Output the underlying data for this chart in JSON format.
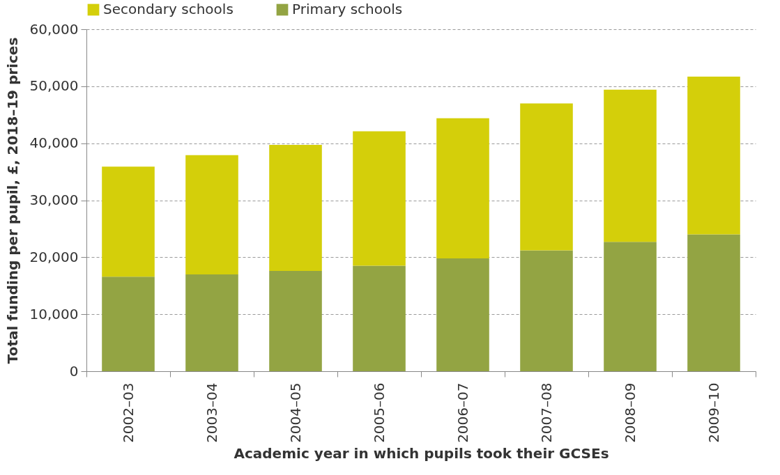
{
  "chart_data": {
    "type": "bar",
    "stacked": true,
    "xlabel": "Academic year in which pupils took their GCSEs",
    "ylabel": "Total funding per pupil, £, 2018–19 prices",
    "categories": [
      "2002–03",
      "2003–04",
      "2004–05",
      "2005–06",
      "2006–07",
      "2007–08",
      "2008–09",
      "2009–10"
    ],
    "series": [
      {
        "name": "Primary schools",
        "color": "#93a443",
        "values": [
          16600,
          17000,
          17600,
          18500,
          19800,
          21200,
          22700,
          24000
        ]
      },
      {
        "name": "Secondary schools",
        "color": "#d4cf0a",
        "values": [
          19300,
          20900,
          22100,
          23600,
          24600,
          25800,
          26700,
          27700
        ]
      }
    ],
    "ylim": [
      0,
      60000
    ],
    "yticks": [
      {
        "value": 0,
        "label": "0"
      },
      {
        "value": 10000,
        "label": "10,000"
      },
      {
        "value": 20000,
        "label": "20,000"
      },
      {
        "value": 30000,
        "label": "30,000"
      },
      {
        "value": 40000,
        "label": "40,000"
      },
      {
        "value": 50000,
        "label": "50,000"
      },
      {
        "value": 60000,
        "label": "60,000"
      }
    ],
    "grid": "y",
    "legend": "top"
  }
}
